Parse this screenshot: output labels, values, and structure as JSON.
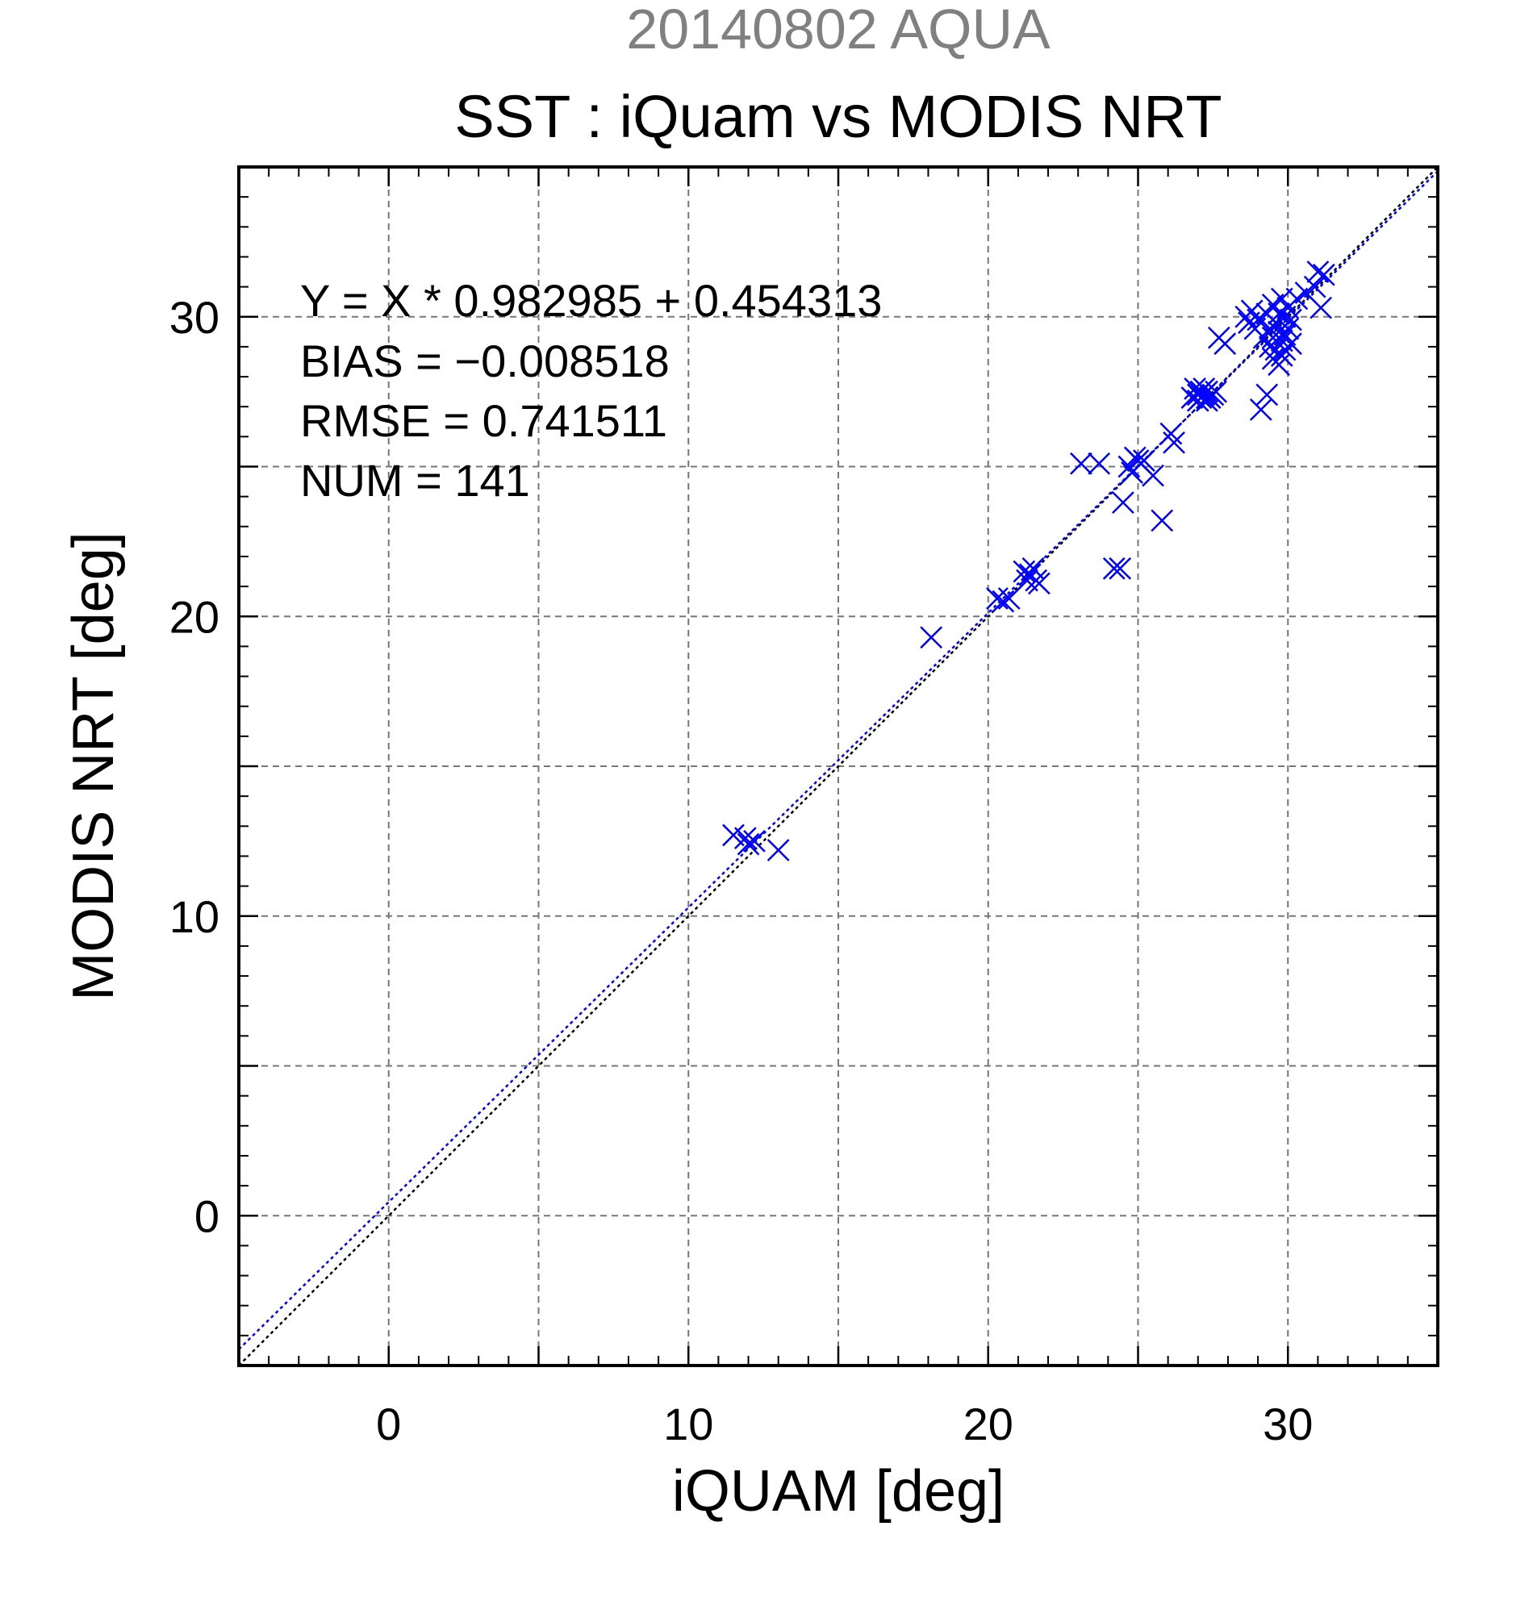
{
  "chart_data": {
    "type": "scatter",
    "title_top": "20140802 AQUA",
    "title": "SST : iQuam vs MODIS NRT",
    "xlabel": "iQUAM [deg]",
    "ylabel": "MODIS NRT [deg]",
    "xlim": [
      -5,
      35
    ],
    "ylim": [
      -5,
      35
    ],
    "x_ticks": [
      0,
      10,
      20,
      30
    ],
    "y_ticks": [
      0,
      10,
      20,
      30
    ],
    "grid": true,
    "stats": {
      "equation": "Y = X * 0.982985 + 0.454313",
      "bias": "BIAS = −0.008518",
      "rmse": "RMSE = 0.741511",
      "num": "NUM = 141"
    },
    "fit": {
      "slope": 0.982985,
      "intercept": 0.454313
    },
    "colors": {
      "points": "#0000ff",
      "fit_line": "#0000ff",
      "identity_line": "#000000",
      "title_top": "#808080"
    },
    "points": [
      [
        11.5,
        12.7
      ],
      [
        11.9,
        12.6
      ],
      [
        12.0,
        12.4
      ],
      [
        12.2,
        12.5
      ],
      [
        13.0,
        12.2
      ],
      [
        18.1,
        19.3
      ],
      [
        20.3,
        20.6
      ],
      [
        20.5,
        20.5
      ],
      [
        20.7,
        20.6
      ],
      [
        21.2,
        21.5
      ],
      [
        21.3,
        21.2
      ],
      [
        21.4,
        21.4
      ],
      [
        21.5,
        21.6
      ],
      [
        21.6,
        21.2
      ],
      [
        21.7,
        21.1
      ],
      [
        23.1,
        25.1
      ],
      [
        23.7,
        25.1
      ],
      [
        24.2,
        21.6
      ],
      [
        24.4,
        21.6
      ],
      [
        24.5,
        23.8
      ],
      [
        24.7,
        25.0
      ],
      [
        24.8,
        24.8
      ],
      [
        24.9,
        25.3
      ],
      [
        25.0,
        25.2
      ],
      [
        25.1,
        25.1
      ],
      [
        25.2,
        25.2
      ],
      [
        25.5,
        24.7
      ],
      [
        25.8,
        23.2
      ],
      [
        26.1,
        26.1
      ],
      [
        26.2,
        25.8
      ],
      [
        26.8,
        27.3
      ],
      [
        26.9,
        27.6
      ],
      [
        27.0,
        27.4
      ],
      [
        27.0,
        27.2
      ],
      [
        27.1,
        27.5
      ],
      [
        27.1,
        27.3
      ],
      [
        27.2,
        27.4
      ],
      [
        27.2,
        27.6
      ],
      [
        27.3,
        27.2
      ],
      [
        27.3,
        27.5
      ],
      [
        27.4,
        27.3
      ],
      [
        27.5,
        27.4
      ],
      [
        27.6,
        27.5
      ],
      [
        27.7,
        29.3
      ],
      [
        27.9,
        29.1
      ],
      [
        28.6,
        30.0
      ],
      [
        28.7,
        29.8
      ],
      [
        28.8,
        30.2
      ],
      [
        28.9,
        29.6
      ],
      [
        29.0,
        29.9
      ],
      [
        29.1,
        26.9
      ],
      [
        29.2,
        29.3
      ],
      [
        29.3,
        27.4
      ],
      [
        29.3,
        30.1
      ],
      [
        29.4,
        29.0
      ],
      [
        29.4,
        29.6
      ],
      [
        29.5,
        28.6
      ],
      [
        29.5,
        29.3
      ],
      [
        29.5,
        30.4
      ],
      [
        29.6,
        29.8
      ],
      [
        29.6,
        28.9
      ],
      [
        29.7,
        29.5
      ],
      [
        29.7,
        30.1
      ],
      [
        29.7,
        28.4
      ],
      [
        29.8,
        29.2
      ],
      [
        29.8,
        30.6
      ],
      [
        29.8,
        28.7
      ],
      [
        29.9,
        29.4
      ],
      [
        29.9,
        30.0
      ],
      [
        29.9,
        28.9
      ],
      [
        30.0,
        29.6
      ],
      [
        30.0,
        30.3
      ],
      [
        30.1,
        29.1
      ],
      [
        30.1,
        29.9
      ],
      [
        30.3,
        30.6
      ],
      [
        30.6,
        30.8
      ],
      [
        30.9,
        31.0
      ],
      [
        31.1,
        30.3
      ],
      [
        31.0,
        31.5
      ],
      [
        31.2,
        31.4
      ]
    ]
  }
}
